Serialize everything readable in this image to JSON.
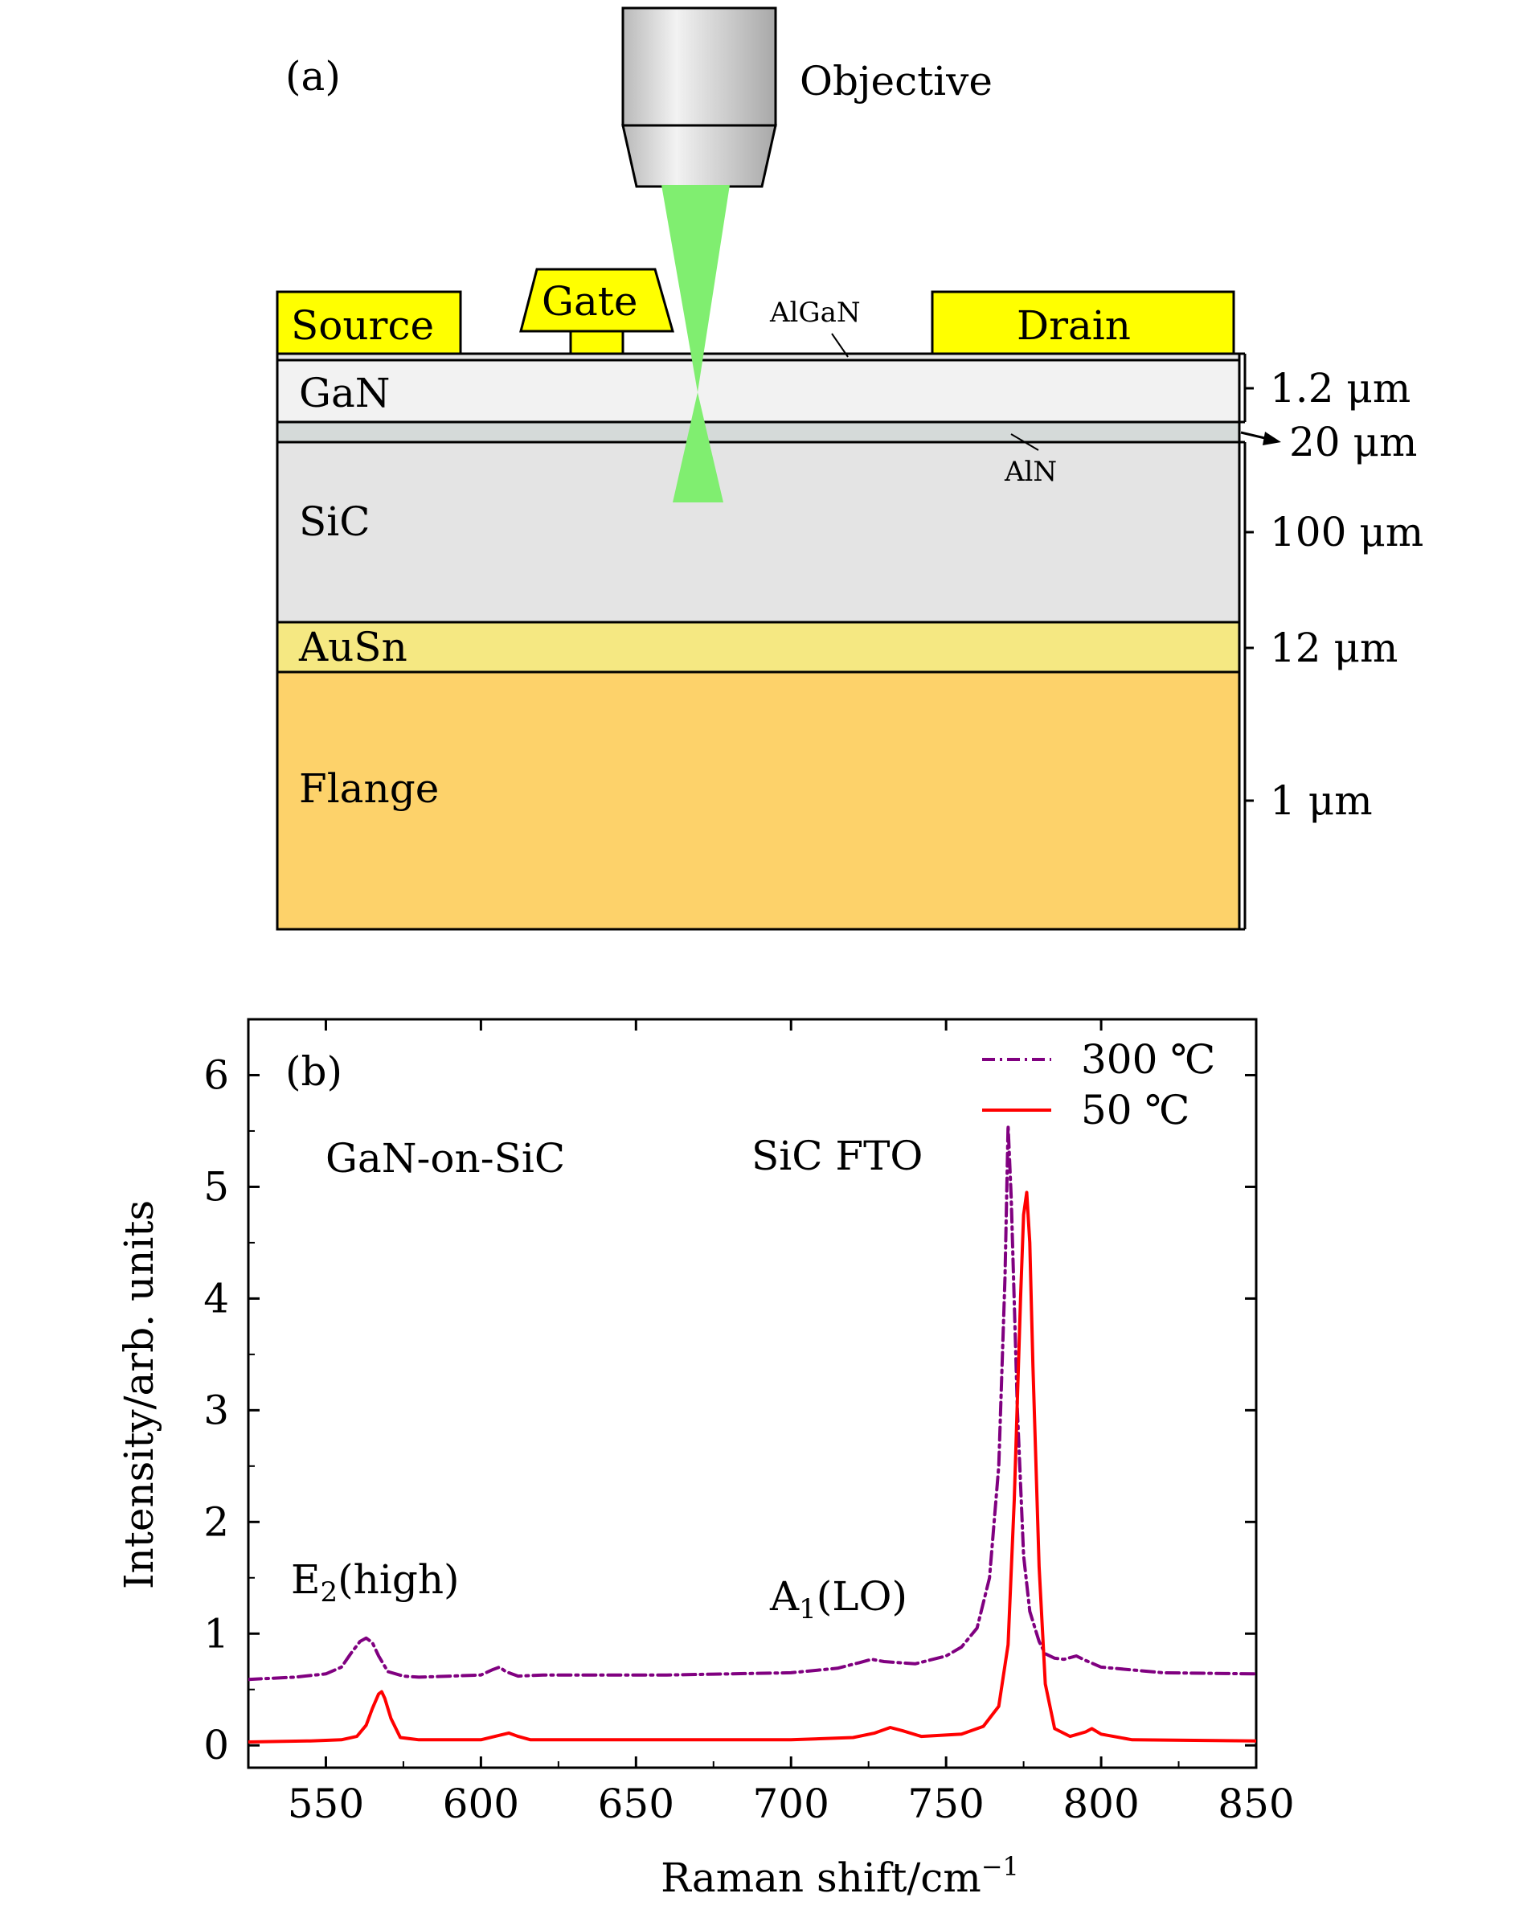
{
  "panel_a": {
    "label": "(a)",
    "objective_label": "Objective",
    "electrodes": {
      "source": "Source",
      "gate": "Gate",
      "drain": "Drain"
    },
    "layers": {
      "algan": "AlGaN",
      "gan": "GaN",
      "aln": "AlN",
      "sic": "SiC",
      "ausn": "AuSn",
      "flange": "Flange"
    },
    "thickness_labels": [
      "1.2 μm",
      "20 μm",
      "100 μm",
      "12 μm",
      "1 μm"
    ],
    "colors": {
      "electrode": "#ffff00",
      "laser": "#80ee70",
      "gan": "#f2f2f2",
      "aln": "#d5dad9",
      "sic": "#e4e4e4",
      "ausn": "#f5e882",
      "flange": "#fdd26a",
      "objective": "#c8c8c8"
    }
  },
  "chart_data": {
    "type": "line",
    "panel_label": "(b)",
    "xlabel": "Raman shift/cm",
    "xlabel_sup": "−1",
    "ylabel": "Intensity/arb. units",
    "xlim": [
      525,
      850
    ],
    "ylim": [
      -0.2,
      6.5
    ],
    "xticks": [
      550,
      600,
      650,
      700,
      750,
      800,
      850
    ],
    "yticks": [
      0,
      1,
      2,
      3,
      4,
      5,
      6
    ],
    "legend_position": "top-right",
    "annotations": {
      "sample": "GaN-on-SiC",
      "sic_fto": "SiC FTO",
      "e2_main": "E",
      "e2_sub": "2",
      "e2_rest": "(high)",
      "a1_main": "A",
      "a1_sub": "1",
      "a1_rest": "(LO)"
    },
    "series": [
      {
        "name": "300 ℃",
        "color": "#800080",
        "style": "dash-dot",
        "x": [
          525,
          540,
          550,
          555,
          558,
          561,
          563,
          565,
          567,
          570,
          575,
          580,
          590,
          600,
          604,
          606,
          608,
          612,
          620,
          640,
          660,
          680,
          700,
          715,
          722,
          726,
          730,
          740,
          750,
          755,
          760,
          764,
          767,
          769,
          770,
          771,
          773,
          775,
          777,
          780,
          782,
          785,
          788,
          792,
          795,
          800,
          820,
          850
        ],
        "values": [
          0.59,
          0.61,
          0.64,
          0.7,
          0.82,
          0.93,
          0.96,
          0.92,
          0.8,
          0.66,
          0.62,
          0.61,
          0.62,
          0.63,
          0.68,
          0.7,
          0.66,
          0.62,
          0.63,
          0.63,
          0.63,
          0.64,
          0.65,
          0.69,
          0.74,
          0.77,
          0.75,
          0.73,
          0.8,
          0.88,
          1.05,
          1.5,
          2.5,
          4.2,
          5.55,
          4.9,
          3.0,
          1.7,
          1.2,
          0.93,
          0.82,
          0.78,
          0.77,
          0.8,
          0.76,
          0.7,
          0.65,
          0.64
        ]
      },
      {
        "name": "50 ℃",
        "color": "#ff0000",
        "style": "solid",
        "x": [
          525,
          545,
          555,
          560,
          563,
          565,
          567,
          568,
          569,
          571,
          574,
          580,
          600,
          606,
          609,
          612,
          616,
          650,
          700,
          720,
          727,
          732,
          736,
          742,
          755,
          762,
          767,
          770,
          772,
          774,
          775,
          776,
          777,
          778,
          780,
          782,
          785,
          790,
          795,
          797,
          800,
          810,
          850
        ],
        "values": [
          0.03,
          0.04,
          0.05,
          0.08,
          0.18,
          0.33,
          0.46,
          0.48,
          0.42,
          0.24,
          0.07,
          0.05,
          0.05,
          0.09,
          0.11,
          0.08,
          0.05,
          0.05,
          0.05,
          0.07,
          0.11,
          0.16,
          0.13,
          0.08,
          0.1,
          0.17,
          0.35,
          0.9,
          2.2,
          4.0,
          4.75,
          4.95,
          4.5,
          3.4,
          1.6,
          0.55,
          0.15,
          0.08,
          0.12,
          0.15,
          0.1,
          0.05,
          0.04
        ]
      }
    ]
  }
}
